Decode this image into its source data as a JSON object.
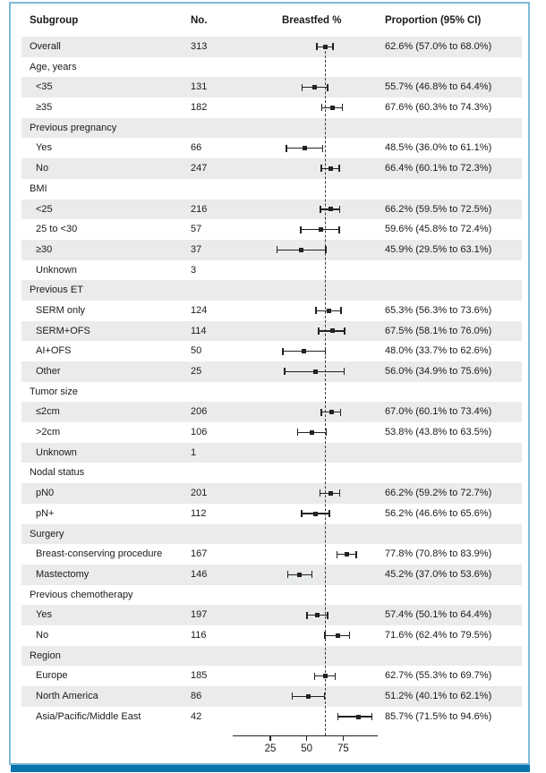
{
  "header": {
    "subgroup": "Subgroup",
    "no": "No.",
    "breastfed": "Breastfed %",
    "proportion": "Proportion (95% CI)"
  },
  "colors": {
    "row_shade": "#e9ece9",
    "panel_border": "#7db9d8",
    "footer_bar": "#0a73ab",
    "ink": "#1a1a1a",
    "plot_ink": "#222222"
  },
  "chart_data": {
    "type": "scatter",
    "variant": "forest_plot",
    "title": "",
    "xlabel": "Breastfed %",
    "x_axis": {
      "min": 0,
      "max": 98,
      "ticks": [
        25,
        50,
        75
      ],
      "grid": false
    },
    "reference_value": 62.6,
    "columns": [
      "Subgroup",
      "No.",
      "Breastfed %",
      "Proportion (95% CI)"
    ],
    "rows": [
      {
        "type": "overall",
        "label": "Overall",
        "n": "313",
        "est": 62.6,
        "lo": 57.0,
        "hi": 68.0,
        "ci": "62.6% (57.0% to 68.0%)"
      },
      {
        "type": "category",
        "label": "Age, years"
      },
      {
        "type": "item",
        "label": "<35",
        "n": "131",
        "est": 55.7,
        "lo": 46.8,
        "hi": 64.4,
        "ci": "55.7% (46.8% to 64.4%)"
      },
      {
        "type": "item",
        "label": "≥35",
        "n": "182",
        "est": 67.6,
        "lo": 60.3,
        "hi": 74.3,
        "ci": "67.6% (60.3% to 74.3%)"
      },
      {
        "type": "category",
        "label": "Previous pregnancy"
      },
      {
        "type": "item",
        "label": "Yes",
        "n": "66",
        "est": 48.5,
        "lo": 36.0,
        "hi": 61.1,
        "ci": "48.5% (36.0% to 61.1%)"
      },
      {
        "type": "item",
        "label": "No",
        "n": "247",
        "est": 66.4,
        "lo": 60.1,
        "hi": 72.3,
        "ci": "66.4% (60.1% to 72.3%)"
      },
      {
        "type": "category",
        "label": "BMI"
      },
      {
        "type": "item",
        "label": "<25",
        "n": "216",
        "est": 66.2,
        "lo": 59.5,
        "hi": 72.5,
        "ci": "66.2% (59.5% to 72.5%)"
      },
      {
        "type": "item",
        "label": "25 to <30",
        "n": "57",
        "est": 59.6,
        "lo": 45.8,
        "hi": 72.4,
        "ci": "59.6% (45.8% to 72.4%)"
      },
      {
        "type": "item",
        "label": "≥30",
        "n": "37",
        "est": 45.9,
        "lo": 29.5,
        "hi": 63.1,
        "ci": "45.9% (29.5% to 63.1%)"
      },
      {
        "type": "item",
        "label": "Unknown",
        "n": "3"
      },
      {
        "type": "category",
        "label": "Previous ET"
      },
      {
        "type": "item",
        "label": "SERM only",
        "n": "124",
        "est": 65.3,
        "lo": 56.3,
        "hi": 73.6,
        "ci": "65.3% (56.3% to 73.6%)"
      },
      {
        "type": "item",
        "label": "SERM+OFS",
        "n": "114",
        "est": 67.5,
        "lo": 58.1,
        "hi": 76.0,
        "ci": "67.5% (58.1% to 76.0%)"
      },
      {
        "type": "item",
        "label": "AI+OFS",
        "n": "50",
        "est": 48.0,
        "lo": 33.7,
        "hi": 62.6,
        "ci": "48.0% (33.7% to 62.6%)"
      },
      {
        "type": "item",
        "label": "Other",
        "n": "25",
        "est": 56.0,
        "lo": 34.9,
        "hi": 75.6,
        "ci": "56.0% (34.9% to 75.6%)"
      },
      {
        "type": "category",
        "label": "Tumor size"
      },
      {
        "type": "item",
        "label": "≤2cm",
        "n": "206",
        "est": 67.0,
        "lo": 60.1,
        "hi": 73.4,
        "ci": "67.0% (60.1% to 73.4%)"
      },
      {
        "type": "item",
        "label": ">2cm",
        "n": "106",
        "est": 53.8,
        "lo": 43.8,
        "hi": 63.5,
        "ci": "53.8% (43.8% to 63.5%)"
      },
      {
        "type": "item",
        "label": "Unknown",
        "n": "1"
      },
      {
        "type": "category",
        "label": "Nodal status"
      },
      {
        "type": "item",
        "label": "pN0",
        "n": "201",
        "est": 66.2,
        "lo": 59.2,
        "hi": 72.7,
        "ci": "66.2% (59.2% to 72.7%)"
      },
      {
        "type": "item",
        "label": "pN+",
        "n": "112",
        "est": 56.2,
        "lo": 46.6,
        "hi": 65.6,
        "ci": "56.2% (46.6% to 65.6%)"
      },
      {
        "type": "category",
        "label": "Surgery"
      },
      {
        "type": "item",
        "label": "Breast-conserving procedure",
        "n": "167",
        "est": 77.8,
        "lo": 70.8,
        "hi": 83.9,
        "ci": "77.8% (70.8% to 83.9%)"
      },
      {
        "type": "item",
        "label": "Mastectomy",
        "n": "146",
        "est": 45.2,
        "lo": 37.0,
        "hi": 53.6,
        "ci": "45.2% (37.0% to 53.6%)"
      },
      {
        "type": "category",
        "label": "Previous chemotherapy"
      },
      {
        "type": "item",
        "label": "Yes",
        "n": "197",
        "est": 57.4,
        "lo": 50.1,
        "hi": 64.4,
        "ci": "57.4% (50.1% to 64.4%)"
      },
      {
        "type": "item",
        "label": "No",
        "n": "116",
        "est": 71.6,
        "lo": 62.4,
        "hi": 79.5,
        "ci": "71.6% (62.4% to 79.5%)"
      },
      {
        "type": "category",
        "label": "Region"
      },
      {
        "type": "item",
        "label": "Europe",
        "n": "185",
        "est": 62.7,
        "lo": 55.3,
        "hi": 69.7,
        "ci": "62.7% (55.3% to 69.7%)"
      },
      {
        "type": "item",
        "label": "North America",
        "n": "86",
        "est": 51.2,
        "lo": 40.1,
        "hi": 62.1,
        "ci": "51.2% (40.1% to 62.1%)"
      },
      {
        "type": "item",
        "label": "Asia/Pacific/Middle East",
        "n": "42",
        "est": 85.7,
        "lo": 71.5,
        "hi": 94.6,
        "ci": "85.7% (71.5% to 94.6%)"
      }
    ]
  }
}
